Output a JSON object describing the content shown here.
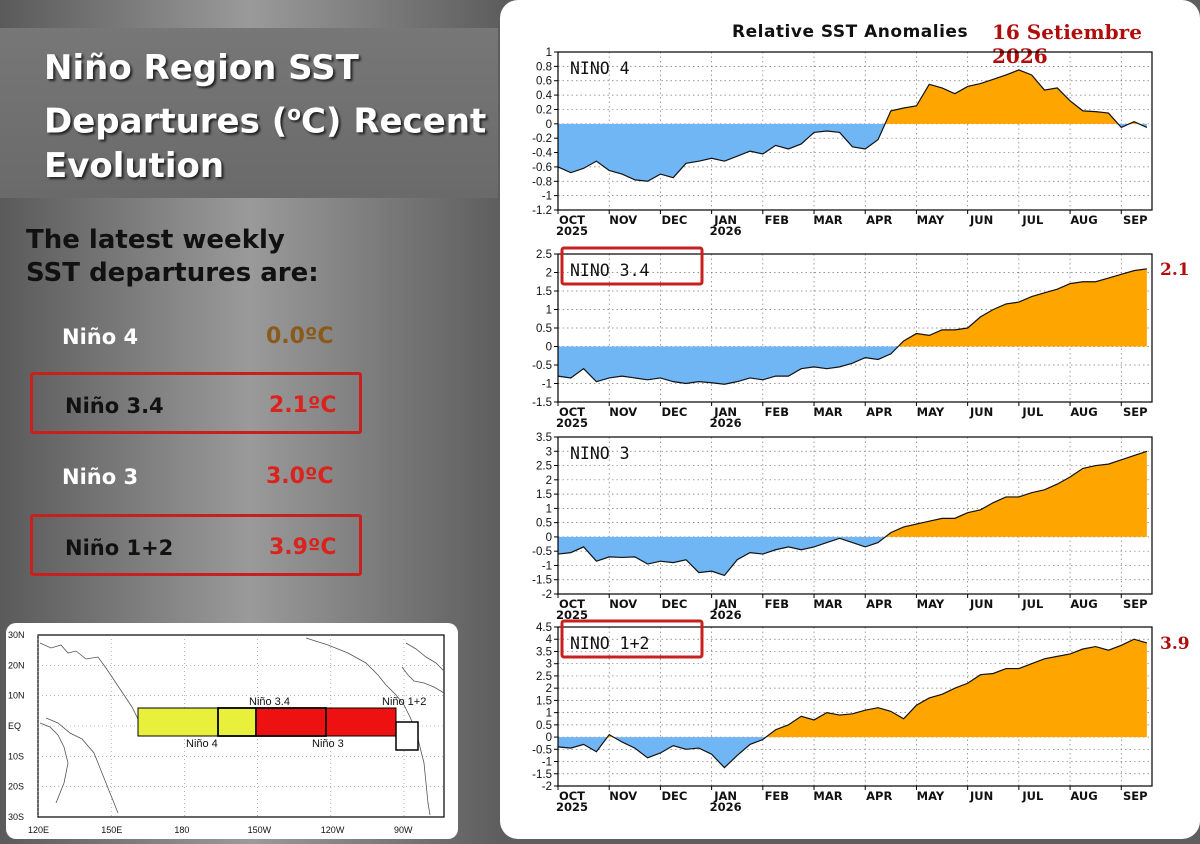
{
  "title_line1": "Niño Region SST",
  "title_line2a": "Departures (",
  "title_sup": "o",
  "title_line2b": "C) Recent",
  "title_line3": "Evolution",
  "subtitle_line1": "The latest weekly",
  "subtitle_line2": "SST departures are:",
  "regions": [
    {
      "name": "Niño 4",
      "value": "0.0ºC",
      "value_color": "#8a5a1a",
      "boxed": false
    },
    {
      "name": "Niño 3.4",
      "value": "2.1ºC",
      "value_color": "#d9231c",
      "boxed": true
    },
    {
      "name": "Niño 3",
      "value": "3.0ºC",
      "value_color": "#d9231c",
      "boxed": false
    },
    {
      "name": "Niño 1+2",
      "value": "3.9ºC",
      "value_color": "#d9231c",
      "boxed": true
    }
  ],
  "map": {
    "lat_labels": [
      "30N",
      "20N",
      "10N",
      "EQ",
      "10S",
      "20S",
      "30S"
    ],
    "lon_labels": [
      "120E",
      "150E",
      "180",
      "150W",
      "120W",
      "90W"
    ],
    "region_labels": [
      "Niño 3.4",
      "Niño 4",
      "Niño 3",
      "Niño 1+2"
    ],
    "colors": {
      "nino4": "#e8f03c",
      "nino3": "#ee1111",
      "nino12": "#ffffff"
    }
  },
  "chart_header": {
    "title": "Relative SST Anomalies",
    "date": "16 Setiembre 2026"
  },
  "colors": {
    "positive": "#ffa500",
    "negative": "#70b5f4"
  },
  "chart_data": [
    {
      "type": "area",
      "title": "NINO 4",
      "boxed": false,
      "end_label": "",
      "ylim": [
        -1.2,
        1
      ],
      "yticks": [
        1,
        0.8,
        0.6,
        0.4,
        0.2,
        0,
        -0.2,
        -0.4,
        -0.6,
        -0.8,
        -1,
        -1.2
      ],
      "x_month_labels": [
        "OCT",
        "NOV",
        "DEC",
        "JAN",
        "FEB",
        "MAR",
        "APR",
        "MAY",
        "JUN",
        "JUL",
        "AUG",
        "SEP"
      ],
      "x_year_labels": [
        "2025",
        "2026"
      ],
      "grid": true,
      "x": [
        0,
        0.25,
        0.5,
        0.75,
        1,
        1.25,
        1.5,
        1.75,
        2,
        2.25,
        2.5,
        2.75,
        3,
        3.25,
        3.5,
        3.75,
        4,
        4.25,
        4.5,
        4.75,
        5,
        5.25,
        5.5,
        5.75,
        6,
        6.25,
        6.5,
        6.75,
        7,
        7.25,
        7.5,
        7.75,
        8,
        8.25,
        8.5,
        8.75,
        9,
        9.25,
        9.5,
        9.75,
        10,
        10.25,
        10.5,
        10.75,
        11,
        11.25,
        11.5
      ],
      "values": [
        -0.6,
        -0.68,
        -0.62,
        -0.52,
        -0.65,
        -0.7,
        -0.78,
        -0.8,
        -0.7,
        -0.75,
        -0.55,
        -0.52,
        -0.48,
        -0.52,
        -0.45,
        -0.38,
        -0.42,
        -0.3,
        -0.35,
        -0.28,
        -0.12,
        -0.1,
        -0.12,
        -0.32,
        -0.35,
        -0.22,
        0.18,
        0.22,
        0.25,
        0.55,
        0.5,
        0.42,
        0.52,
        0.56,
        0.62,
        0.68,
        0.75,
        0.68,
        0.47,
        0.5,
        0.32,
        0.18,
        0.17,
        0.15,
        -0.05,
        0.03,
        -0.05
      ]
    },
    {
      "type": "area",
      "title": "NINO 3.4",
      "boxed": true,
      "end_label": "2.1",
      "ylim": [
        -1.5,
        2.5
      ],
      "yticks": [
        2.5,
        2,
        1.5,
        1,
        0.5,
        0,
        -0.5,
        -1,
        -1.5
      ],
      "x_month_labels": [
        "OCT",
        "NOV",
        "DEC",
        "JAN",
        "FEB",
        "MAR",
        "APR",
        "MAY",
        "JUN",
        "JUL",
        "AUG",
        "SEP"
      ],
      "x_year_labels": [
        "2025",
        "2026"
      ],
      "grid": true,
      "x": [
        0,
        0.25,
        0.5,
        0.75,
        1,
        1.25,
        1.5,
        1.75,
        2,
        2.25,
        2.5,
        2.75,
        3,
        3.25,
        3.5,
        3.75,
        4,
        4.25,
        4.5,
        4.75,
        5,
        5.25,
        5.5,
        5.75,
        6,
        6.25,
        6.5,
        6.75,
        7,
        7.25,
        7.5,
        7.75,
        8,
        8.25,
        8.5,
        8.75,
        9,
        9.25,
        9.5,
        9.75,
        10,
        10.25,
        10.5,
        10.75,
        11,
        11.25,
        11.5
      ],
      "values": [
        -0.8,
        -0.85,
        -0.6,
        -0.95,
        -0.85,
        -0.8,
        -0.85,
        -0.9,
        -0.85,
        -0.95,
        -1.0,
        -0.95,
        -0.98,
        -1.02,
        -0.95,
        -0.85,
        -0.9,
        -0.8,
        -0.8,
        -0.6,
        -0.55,
        -0.6,
        -0.55,
        -0.45,
        -0.3,
        -0.35,
        -0.2,
        0.15,
        0.35,
        0.3,
        0.45,
        0.45,
        0.5,
        0.8,
        1.0,
        1.15,
        1.2,
        1.35,
        1.45,
        1.55,
        1.7,
        1.75,
        1.75,
        1.85,
        1.95,
        2.05,
        2.1
      ]
    },
    {
      "type": "area",
      "title": "NINO 3",
      "boxed": false,
      "end_label": "",
      "ylim": [
        -2,
        3.5
      ],
      "yticks": [
        3.5,
        3,
        2.5,
        2,
        1.5,
        1,
        0.5,
        0,
        -0.5,
        -1,
        -1.5,
        -2
      ],
      "x_month_labels": [
        "OCT",
        "NOV",
        "DEC",
        "JAN",
        "FEB",
        "MAR",
        "APR",
        "MAY",
        "JUN",
        "JUL",
        "AUG",
        "SEP"
      ],
      "x_year_labels": [
        "2025",
        "2026"
      ],
      "grid": true,
      "x": [
        0,
        0.25,
        0.5,
        0.75,
        1,
        1.25,
        1.5,
        1.75,
        2,
        2.25,
        2.5,
        2.75,
        3,
        3.25,
        3.5,
        3.75,
        4,
        4.25,
        4.5,
        4.75,
        5,
        5.25,
        5.5,
        5.75,
        6,
        6.25,
        6.5,
        6.75,
        7,
        7.25,
        7.5,
        7.75,
        8,
        8.25,
        8.5,
        8.75,
        9,
        9.25,
        9.5,
        9.75,
        10,
        10.25,
        10.5,
        10.75,
        11,
        11.25,
        11.5
      ],
      "values": [
        -0.6,
        -0.55,
        -0.35,
        -0.85,
        -0.7,
        -0.72,
        -0.7,
        -0.95,
        -0.85,
        -0.9,
        -0.8,
        -1.25,
        -1.2,
        -1.35,
        -0.8,
        -0.55,
        -0.6,
        -0.45,
        -0.35,
        -0.45,
        -0.35,
        -0.2,
        -0.05,
        -0.2,
        -0.35,
        -0.2,
        0.15,
        0.35,
        0.45,
        0.55,
        0.65,
        0.65,
        0.85,
        0.95,
        1.2,
        1.4,
        1.4,
        1.55,
        1.65,
        1.85,
        2.1,
        2.4,
        2.5,
        2.55,
        2.7,
        2.85,
        3.0
      ]
    },
    {
      "type": "area",
      "title": "NINO 1+2",
      "boxed": true,
      "end_label": "3.9",
      "ylim": [
        -2,
        4.5
      ],
      "yticks": [
        4.5,
        4,
        3.5,
        3,
        2.5,
        2,
        1.5,
        1,
        0.5,
        0,
        -0.5,
        -1,
        -1.5,
        -2
      ],
      "x_month_labels": [
        "OCT",
        "NOV",
        "DEC",
        "JAN",
        "FEB",
        "MAR",
        "APR",
        "MAY",
        "JUN",
        "JUL",
        "AUG",
        "SEP"
      ],
      "x_year_labels": [
        "2025",
        "2026"
      ],
      "grid": true,
      "x": [
        0,
        0.25,
        0.5,
        0.75,
        1,
        1.25,
        1.5,
        1.75,
        2,
        2.25,
        2.5,
        2.75,
        3,
        3.25,
        3.5,
        3.75,
        4,
        4.25,
        4.5,
        4.75,
        5,
        5.25,
        5.5,
        5.75,
        6,
        6.25,
        6.5,
        6.75,
        7,
        7.25,
        7.5,
        7.75,
        8,
        8.25,
        8.5,
        8.75,
        9,
        9.25,
        9.5,
        9.75,
        10,
        10.25,
        10.5,
        10.75,
        11,
        11.25,
        11.5
      ],
      "values": [
        -0.4,
        -0.45,
        -0.3,
        -0.6,
        0.1,
        -0.2,
        -0.45,
        -0.85,
        -0.65,
        -0.35,
        -0.5,
        -0.45,
        -0.7,
        -1.25,
        -0.75,
        -0.3,
        -0.1,
        0.3,
        0.5,
        0.85,
        0.7,
        1.0,
        0.9,
        0.95,
        1.1,
        1.2,
        1.05,
        0.75,
        1.3,
        1.6,
        1.75,
        2.0,
        2.2,
        2.55,
        2.6,
        2.8,
        2.8,
        3.0,
        3.2,
        3.3,
        3.4,
        3.6,
        3.7,
        3.55,
        3.75,
        4.0,
        3.85
      ]
    }
  ]
}
